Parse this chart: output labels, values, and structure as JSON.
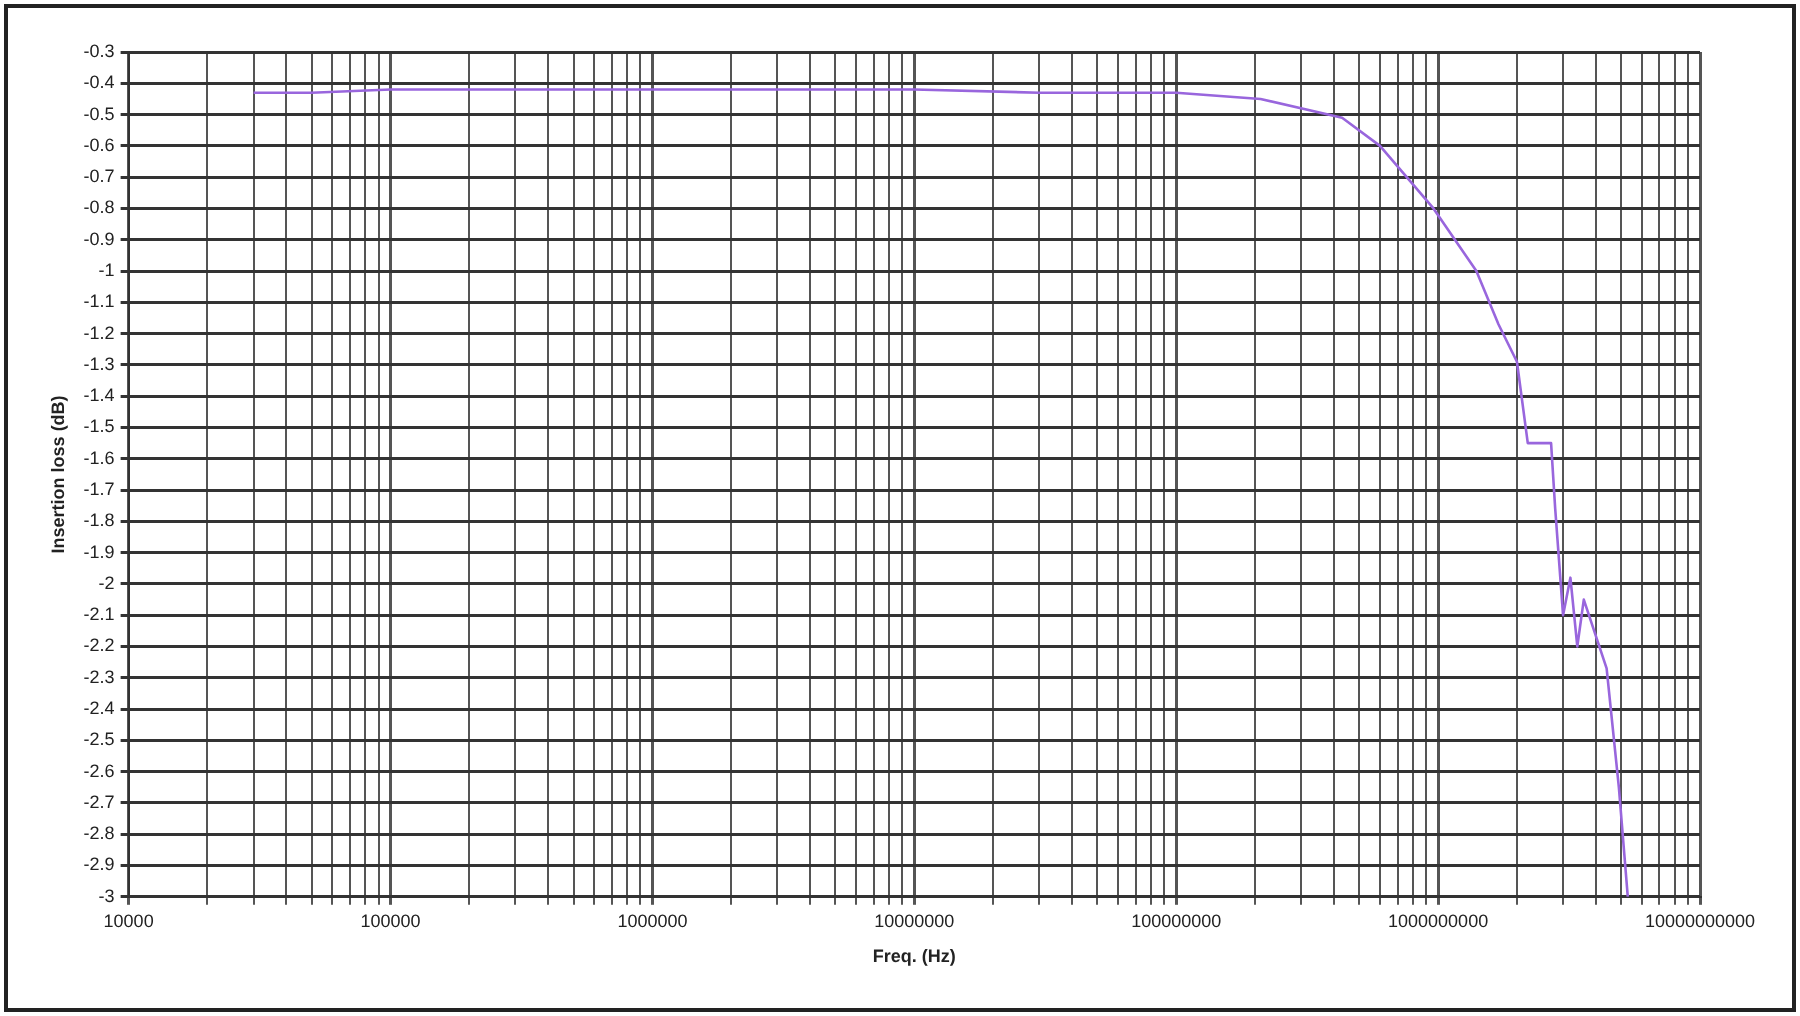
{
  "chart_data": {
    "type": "line",
    "xlabel": "Freq. (Hz)",
    "ylabel": "Insertion loss (dB)",
    "log": "x",
    "grid": true,
    "legend": false,
    "marker": "none",
    "line_style": "solid",
    "xlim": [
      10000,
      10000000000
    ],
    "xticks": [
      10000,
      {
        "value": 20000,
        "label": null
      },
      {
        "value": 30000,
        "label": null
      },
      {
        "value": 40000,
        "label": null
      },
      {
        "value": 50000,
        "label": null
      },
      {
        "value": 60000,
        "label": null
      },
      {
        "value": 70000,
        "label": null
      },
      {
        "value": 80000,
        "label": null
      },
      {
        "value": 90000,
        "label": null
      },
      100000,
      {
        "value": 200000,
        "label": null
      },
      {
        "value": 300000,
        "label": null
      },
      {
        "value": 400000,
        "label": null
      },
      {
        "value": 500000,
        "label": null
      },
      {
        "value": 600000,
        "label": null
      },
      {
        "value": 700000,
        "label": null
      },
      {
        "value": 800000,
        "label": null
      },
      {
        "value": 900000,
        "label": null
      },
      1000000,
      {
        "value": 2000000,
        "label": null
      },
      {
        "value": 3000000,
        "label": null
      },
      {
        "value": 4000000,
        "label": null
      },
      {
        "value": 5000000,
        "label": null
      },
      {
        "value": 6000000,
        "label": null
      },
      {
        "value": 7000000,
        "label": null
      },
      {
        "value": 8000000,
        "label": null
      },
      {
        "value": 9000000,
        "label": null
      },
      10000000,
      {
        "value": 20000000,
        "label": null
      },
      {
        "value": 30000000,
        "label": null
      },
      {
        "value": 40000000,
        "label": null
      },
      {
        "value": 50000000,
        "label": null
      },
      {
        "value": 60000000,
        "label": null
      },
      {
        "value": 70000000,
        "label": null
      },
      {
        "value": 80000000,
        "label": null
      },
      {
        "value": 90000000,
        "label": null
      },
      100000000,
      {
        "value": 200000000,
        "label": null
      },
      {
        "value": 300000000,
        "label": null
      },
      {
        "value": 400000000,
        "label": null
      },
      {
        "value": 500000000,
        "label": null
      },
      {
        "value": 600000000,
        "label": null
      },
      {
        "value": 700000000,
        "label": null
      },
      {
        "value": 800000000,
        "label": null
      },
      {
        "value": 900000000,
        "label": null
      },
      1000000000,
      {
        "value": 2000000000,
        "label": null
      },
      {
        "value": 3000000000,
        "label": null
      },
      {
        "value": 4000000000,
        "label": null
      },
      {
        "value": 5000000000,
        "label": null
      },
      {
        "value": 6000000000,
        "label": null
      },
      {
        "value": 7000000000,
        "label": null
      },
      {
        "value": 8000000000,
        "label": null
      },
      {
        "value": 9000000000,
        "label": null
      },
      10000000000
    ],
    "ylim": [
      -3,
      -0.3
    ],
    "yticks": [
      -3,
      -2.9,
      -2.8,
      -2.7,
      -2.6,
      -2.5,
      -2.4,
      -2.3,
      -2.2,
      -2.1,
      -2,
      -1.9,
      -1.8,
      -1.7,
      -1.6,
      -1.5,
      -1.4,
      -1.3,
      -1.2,
      -1.1,
      -1,
      -0.9,
      -0.8,
      -0.7,
      -0.6,
      -0.5,
      -0.4,
      -0.3
    ],
    "series": [
      {
        "color": "#9966dd",
        "x": [
          30000,
          50000,
          100000,
          1000000,
          10000000,
          30000000,
          100000000,
          210000000,
          430000000,
          600000000,
          960000000,
          1400000000,
          1700000000,
          2000000000,
          2200000000,
          2700000000,
          2800000000,
          3000000000,
          3200000000,
          3400000000,
          3600000000,
          4400000000,
          4900000000,
          5300000000
        ],
        "values": [
          -0.43,
          -0.43,
          -0.42,
          -0.42,
          -0.42,
          -0.43,
          -0.43,
          -0.45,
          -0.51,
          -0.6,
          -0.8,
          -1.0,
          -1.17,
          -1.29,
          -1.55,
          -1.55,
          -1.76,
          -2.1,
          -1.98,
          -2.2,
          -2.05,
          -2.27,
          -2.65,
          -3.0
        ]
      }
    ]
  }
}
